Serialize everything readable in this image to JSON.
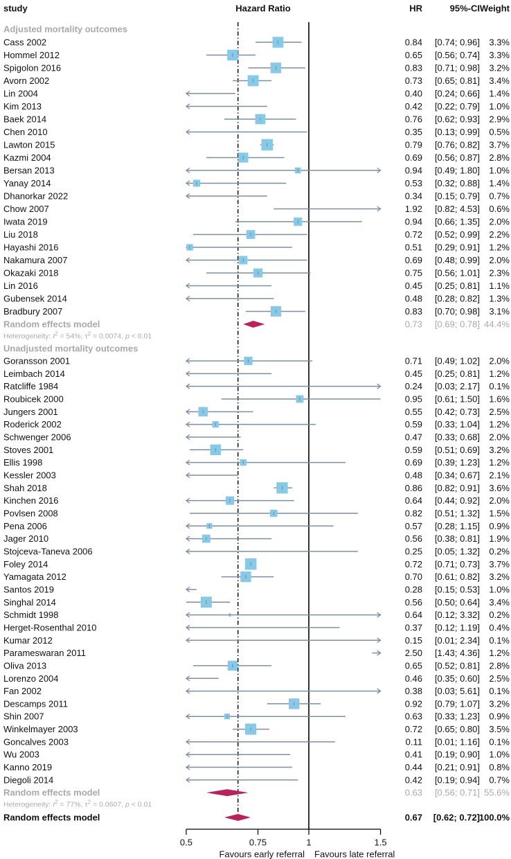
{
  "chart_data": {
    "type": "forest",
    "title": "",
    "columns": {
      "study": "study",
      "plot": "Hazard Ratio",
      "hr": "HR",
      "ci": "95%-CI",
      "weight": "Weight"
    },
    "xscale": "log",
    "xlim": [
      0.5,
      1.5
    ],
    "xticks": [
      0.5,
      0.75,
      1,
      1.5
    ],
    "xtick_labels": [
      "0.5",
      "0.75",
      "1",
      "1.5"
    ],
    "x_label_left": "Favours early referral",
    "x_label_right": "Favours late referral",
    "reference_line": 1,
    "overall_line": 0.67,
    "colors": {
      "box": "#87c9e6",
      "ci": "#7b8fa1",
      "diamond": "#b8235e",
      "subgroup_text": "#a9a9a9"
    },
    "groups": [
      {
        "label": "Adjusted mortality outcomes",
        "studies": [
          {
            "study": "Cass 2002",
            "hr": 0.84,
            "lo": 0.74,
            "hi": 0.96,
            "hr_text": "0.84",
            "ci_text": "[0.74; 0.96]",
            "weight": "3.3%"
          },
          {
            "study": "Hommel 2012",
            "hr": 0.65,
            "lo": 0.56,
            "hi": 0.74,
            "hr_text": "0.65",
            "ci_text": "[0.56; 0.74]",
            "weight": "3.3%"
          },
          {
            "study": "Spigolon 2016",
            "hr": 0.83,
            "lo": 0.71,
            "hi": 0.98,
            "hr_text": "0.83",
            "ci_text": "[0.71; 0.98]",
            "weight": "3.2%"
          },
          {
            "study": "Avorn 2002",
            "hr": 0.73,
            "lo": 0.65,
            "hi": 0.81,
            "hr_text": "0.73",
            "ci_text": "[0.65; 0.81]",
            "weight": "3.4%"
          },
          {
            "study": "Lin 2004",
            "hr": 0.4,
            "lo": 0.24,
            "hi": 0.66,
            "hr_text": "0.40",
            "ci_text": "[0.24; 0.66]",
            "weight": "1.4%"
          },
          {
            "study": "Kim 2013",
            "hr": 0.42,
            "lo": 0.22,
            "hi": 0.79,
            "hr_text": "0.42",
            "ci_text": "[0.22; 0.79]",
            "weight": "1.0%"
          },
          {
            "study": "Baek 2014",
            "hr": 0.76,
            "lo": 0.62,
            "hi": 0.93,
            "hr_text": "0.76",
            "ci_text": "[0.62; 0.93]",
            "weight": "2.9%"
          },
          {
            "study": "Chen 2010",
            "hr": 0.35,
            "lo": 0.13,
            "hi": 0.99,
            "hr_text": "0.35",
            "ci_text": "[0.13; 0.99]",
            "weight": "0.5%"
          },
          {
            "study": "Lawton 2015",
            "hr": 0.79,
            "lo": 0.76,
            "hi": 0.82,
            "hr_text": "0.79",
            "ci_text": "[0.76; 0.82]",
            "weight": "3.7%"
          },
          {
            "study": "Kazmi 2004",
            "hr": 0.69,
            "lo": 0.56,
            "hi": 0.87,
            "hr_text": "0.69",
            "ci_text": "[0.56; 0.87]",
            "weight": "2.8%"
          },
          {
            "study": "Bersan 2013",
            "hr": 0.94,
            "lo": 0.49,
            "hi": 1.8,
            "hr_text": "0.94",
            "ci_text": "[0.49; 1.80]",
            "weight": "1.0%"
          },
          {
            "study": "Yanay 2014",
            "hr": 0.53,
            "lo": 0.32,
            "hi": 0.88,
            "hr_text": "0.53",
            "ci_text": "[0.32; 0.88]",
            "weight": "1.4%"
          },
          {
            "study": "Dhanorkar 2022",
            "hr": 0.34,
            "lo": 0.15,
            "hi": 0.79,
            "hr_text": "0.34",
            "ci_text": "[0.15; 0.79]",
            "weight": "0.7%"
          },
          {
            "study": "Chow 2007",
            "hr": 1.92,
            "lo": 0.82,
            "hi": 4.53,
            "hr_text": "1.92",
            "ci_text": "[0.82; 4.53]",
            "weight": "0.6%"
          },
          {
            "study": "Iwata 2019",
            "hr": 0.94,
            "lo": 0.66,
            "hi": 1.35,
            "hr_text": "0.94",
            "ci_text": "[0.66; 1.35]",
            "weight": "2.0%"
          },
          {
            "study": "Liu 2018",
            "hr": 0.72,
            "lo": 0.52,
            "hi": 0.99,
            "hr_text": "0.72",
            "ci_text": "[0.52; 0.99]",
            "weight": "2.2%"
          },
          {
            "study": "Hayashi 2016",
            "hr": 0.51,
            "lo": 0.29,
            "hi": 0.91,
            "hr_text": "0.51",
            "ci_text": "[0.29; 0.91]",
            "weight": "1.2%"
          },
          {
            "study": "Nakamura 2007",
            "hr": 0.69,
            "lo": 0.48,
            "hi": 0.99,
            "hr_text": "0.69",
            "ci_text": "[0.48; 0.99]",
            "weight": "2.0%"
          },
          {
            "study": "Okazaki 2018",
            "hr": 0.75,
            "lo": 0.56,
            "hi": 1.01,
            "hr_text": "0.75",
            "ci_text": "[0.56; 1.01]",
            "weight": "2.3%"
          },
          {
            "study": "Lin 2016",
            "hr": 0.45,
            "lo": 0.25,
            "hi": 0.81,
            "hr_text": "0.45",
            "ci_text": "[0.25; 0.81]",
            "weight": "1.1%"
          },
          {
            "study": "Gubensek 2014",
            "hr": 0.48,
            "lo": 0.28,
            "hi": 0.82,
            "hr_text": "0.48",
            "ci_text": "[0.28; 0.82]",
            "weight": "1.3%"
          },
          {
            "study": "Bradbury 2007",
            "hr": 0.83,
            "lo": 0.7,
            "hi": 0.98,
            "hr_text": "0.83",
            "ci_text": "[0.70; 0.98]",
            "weight": "3.1%"
          }
        ],
        "model": {
          "label": "Random effects model",
          "hr": 0.73,
          "lo": 0.69,
          "hi": 0.78,
          "hr_text": "0.73",
          "ci_text": "[0.69; 0.78]",
          "weight": "44.4%"
        },
        "heterogeneity": {
          "prefix": "Heterogeneity: ",
          "i2_sym": "I",
          "i2": " = 54%, ",
          "tau_sym": "τ",
          "tau2": " = 0.0074, ",
          "p_sym": "p",
          "p": " < 0.01"
        }
      },
      {
        "label": "Unadjusted mortality outcomes",
        "studies": [
          {
            "study": "Goransson 2001",
            "hr": 0.71,
            "lo": 0.49,
            "hi": 1.02,
            "hr_text": "0.71",
            "ci_text": "[0.49; 1.02]",
            "weight": "2.0%"
          },
          {
            "study": "Leimbach 2014",
            "hr": 0.45,
            "lo": 0.25,
            "hi": 0.81,
            "hr_text": "0.45",
            "ci_text": "[0.25; 0.81]",
            "weight": "1.2%"
          },
          {
            "study": "Ratcliffe  1984",
            "hr": 0.24,
            "lo": 0.03,
            "hi": 2.17,
            "hr_text": "0.24",
            "ci_text": "[0.03; 2.17]",
            "weight": "0.1%"
          },
          {
            "study": "Roubicek 2000",
            "hr": 0.95,
            "lo": 0.61,
            "hi": 1.5,
            "hr_text": "0.95",
            "ci_text": "[0.61; 1.50]",
            "weight": "1.6%"
          },
          {
            "study": "Jungers 2001",
            "hr": 0.55,
            "lo": 0.42,
            "hi": 0.73,
            "hr_text": "0.55",
            "ci_text": "[0.42; 0.73]",
            "weight": "2.5%"
          },
          {
            "study": "Roderick 2002",
            "hr": 0.59,
            "lo": 0.33,
            "hi": 1.04,
            "hr_text": "0.59",
            "ci_text": "[0.33; 1.04]",
            "weight": "1.2%"
          },
          {
            "study": "Schwenger 2006",
            "hr": 0.47,
            "lo": 0.33,
            "hi": 0.68,
            "hr_text": "0.47",
            "ci_text": "[0.33; 0.68]",
            "weight": "2.0%"
          },
          {
            "study": "Stoves 2001",
            "hr": 0.59,
            "lo": 0.51,
            "hi": 0.69,
            "hr_text": "0.59",
            "ci_text": "[0.51; 0.69]",
            "weight": "3.2%"
          },
          {
            "study": "Ellis 1998",
            "hr": 0.69,
            "lo": 0.39,
            "hi": 1.23,
            "hr_text": "0.69",
            "ci_text": "[0.39; 1.23]",
            "weight": "1.2%"
          },
          {
            "study": "Kessler 2003",
            "hr": 0.48,
            "lo": 0.34,
            "hi": 0.67,
            "hr_text": "0.48",
            "ci_text": "[0.34; 0.67]",
            "weight": "2.1%"
          },
          {
            "study": "Shah 2018",
            "hr": 0.86,
            "lo": 0.82,
            "hi": 0.91,
            "hr_text": "0.86",
            "ci_text": "[0.82; 0.91]",
            "weight": "3.6%"
          },
          {
            "study": "Kinchen 2016",
            "hr": 0.64,
            "lo": 0.44,
            "hi": 0.92,
            "hr_text": "0.64",
            "ci_text": "[0.44; 0.92]",
            "weight": "2.0%"
          },
          {
            "study": "Povlsen 2008",
            "hr": 0.82,
            "lo": 0.51,
            "hi": 1.32,
            "hr_text": "0.82",
            "ci_text": "[0.51; 1.32]",
            "weight": "1.5%"
          },
          {
            "study": "Pena 2006",
            "hr": 0.57,
            "lo": 0.28,
            "hi": 1.15,
            "hr_text": "0.57",
            "ci_text": "[0.28; 1.15]",
            "weight": "0.9%"
          },
          {
            "study": "Jager 2010",
            "hr": 0.56,
            "lo": 0.38,
            "hi": 0.81,
            "hr_text": "0.56",
            "ci_text": "[0.38; 0.81]",
            "weight": "1.9%"
          },
          {
            "study": "Stojceva-Taneva 2006",
            "hr": 0.25,
            "lo": 0.05,
            "hi": 1.32,
            "hr_text": "0.25",
            "ci_text": "[0.05; 1.32]",
            "weight": "0.2%"
          },
          {
            "study": "Foley 2014",
            "hr": 0.72,
            "lo": 0.71,
            "hi": 0.73,
            "hr_text": "0.72",
            "ci_text": "[0.71; 0.73]",
            "weight": "3.7%"
          },
          {
            "study": "Yamagata 2012",
            "hr": 0.7,
            "lo": 0.61,
            "hi": 0.82,
            "hr_text": "0.70",
            "ci_text": "[0.61; 0.82]",
            "weight": "3.2%"
          },
          {
            "study": "Santos 2019",
            "hr": 0.28,
            "lo": 0.15,
            "hi": 0.53,
            "hr_text": "0.28",
            "ci_text": "[0.15; 0.53]",
            "weight": "1.0%"
          },
          {
            "study": "Singhal 2014",
            "hr": 0.56,
            "lo": 0.5,
            "hi": 0.64,
            "hr_text": "0.56",
            "ci_text": "[0.50; 0.64]",
            "weight": "3.4%"
          },
          {
            "study": "Schmidt 1998",
            "hr": 0.64,
            "lo": 0.12,
            "hi": 3.32,
            "hr_text": "0.64",
            "ci_text": "[0.12; 3.32]",
            "weight": "0.2%"
          },
          {
            "study": "Herget-Rosenthal 2010",
            "hr": 0.37,
            "lo": 0.12,
            "hi": 1.19,
            "hr_text": "0.37",
            "ci_text": "[0.12; 1.19]",
            "weight": "0.4%"
          },
          {
            "study": "Kumar 2012",
            "hr": 0.15,
            "lo": 0.01,
            "hi": 2.34,
            "hr_text": "0.15",
            "ci_text": "[0.01; 2.34]",
            "weight": "0.1%"
          },
          {
            "study": "Parameswaran 2011",
            "hr": 2.5,
            "lo": 1.43,
            "hi": 4.36,
            "hr_text": "2.50",
            "ci_text": "[1.43; 4.36]",
            "weight": "1.2%"
          },
          {
            "study": "Oliva 2013",
            "hr": 0.65,
            "lo": 0.52,
            "hi": 0.81,
            "hr_text": "0.65",
            "ci_text": "[0.52; 0.81]",
            "weight": "2.8%"
          },
          {
            "study": "Lorenzo 2004",
            "hr": 0.46,
            "lo": 0.35,
            "hi": 0.6,
            "hr_text": "0.46",
            "ci_text": "[0.35; 0.60]",
            "weight": "2.5%"
          },
          {
            "study": "Fan 2002",
            "hr": 0.38,
            "lo": 0.03,
            "hi": 5.61,
            "hr_text": "0.38",
            "ci_text": "[0.03; 5.61]",
            "weight": "0.1%"
          },
          {
            "study": "Descamps 2011",
            "hr": 0.92,
            "lo": 0.79,
            "hi": 1.07,
            "hr_text": "0.92",
            "ci_text": "[0.79; 1.07]",
            "weight": "3.2%"
          },
          {
            "study": "Shin 2007",
            "hr": 0.63,
            "lo": 0.33,
            "hi": 1.23,
            "hr_text": "0.63",
            "ci_text": "[0.33; 1.23]",
            "weight": "0.9%"
          },
          {
            "study": "Winkelmayer 2003",
            "hr": 0.72,
            "lo": 0.65,
            "hi": 0.8,
            "hr_text": "0.72",
            "ci_text": "[0.65; 0.80]",
            "weight": "3.5%"
          },
          {
            "study": "Goncalves 2003",
            "hr": 0.11,
            "lo": 0.01,
            "hi": 1.16,
            "hr_text": "0.11",
            "ci_text": "[0.01; 1.16]",
            "weight": "0.1%"
          },
          {
            "study": "Wu 2003",
            "hr": 0.41,
            "lo": 0.19,
            "hi": 0.9,
            "hr_text": "0.41",
            "ci_text": "[0.19; 0.90]",
            "weight": "1.0%"
          },
          {
            "study": "Kanno 2019",
            "hr": 0.44,
            "lo": 0.21,
            "hi": 0.91,
            "hr_text": "0.44",
            "ci_text": "[0.21; 0.91]",
            "weight": "0.8%"
          },
          {
            "study": "Diegoli 2014",
            "hr": 0.42,
            "lo": 0.19,
            "hi": 0.94,
            "hr_text": "0.42",
            "ci_text": "[0.19; 0.94]",
            "weight": "0.7%"
          }
        ],
        "model": {
          "label": "Random effects model",
          "hr": 0.63,
          "lo": 0.56,
          "hi": 0.71,
          "hr_text": "0.63",
          "ci_text": "[0.56; 0.71]",
          "weight": "55.6%"
        },
        "heterogeneity": {
          "prefix": "Heterogeneity: ",
          "i2_sym": "I",
          "i2": " = 77%, ",
          "tau_sym": "τ",
          "tau2": " = 0.0607, ",
          "p_sym": "p",
          "p": " < 0.01"
        }
      }
    ],
    "overall": {
      "label": "Random effects model",
      "hr": 0.67,
      "lo": 0.62,
      "hi": 0.72,
      "hr_text": "0.67",
      "ci_text": "[0.62; 0.72]",
      "weight": "100.0%"
    }
  }
}
